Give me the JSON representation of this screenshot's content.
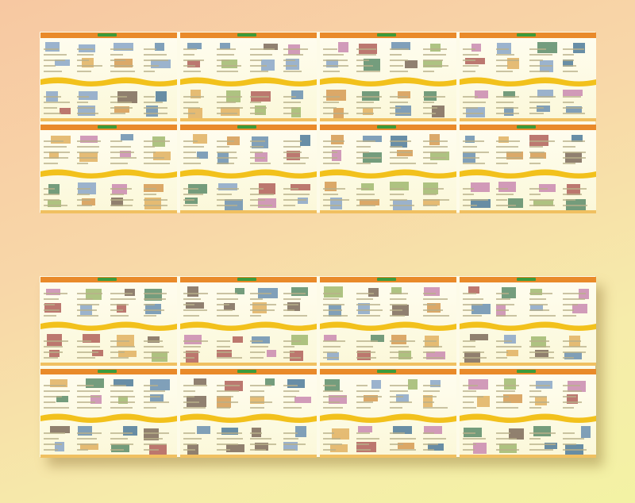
{
  "palette": {
    "header": "#e98a2a",
    "tag": "#3c9b3c",
    "wave": "#f2c11c",
    "thumbs": [
      "#6a8fb0",
      "#b0605a",
      "#d59a52",
      "#5c8c6a",
      "#8aa6c8",
      "#c98ab0",
      "#7c6a5a",
      "#e0b060",
      "#4e7a9a",
      "#a0b870"
    ]
  },
  "sheets": [
    {
      "id": "top",
      "boards": 8
    },
    {
      "id": "bottom",
      "boards": 8
    }
  ]
}
